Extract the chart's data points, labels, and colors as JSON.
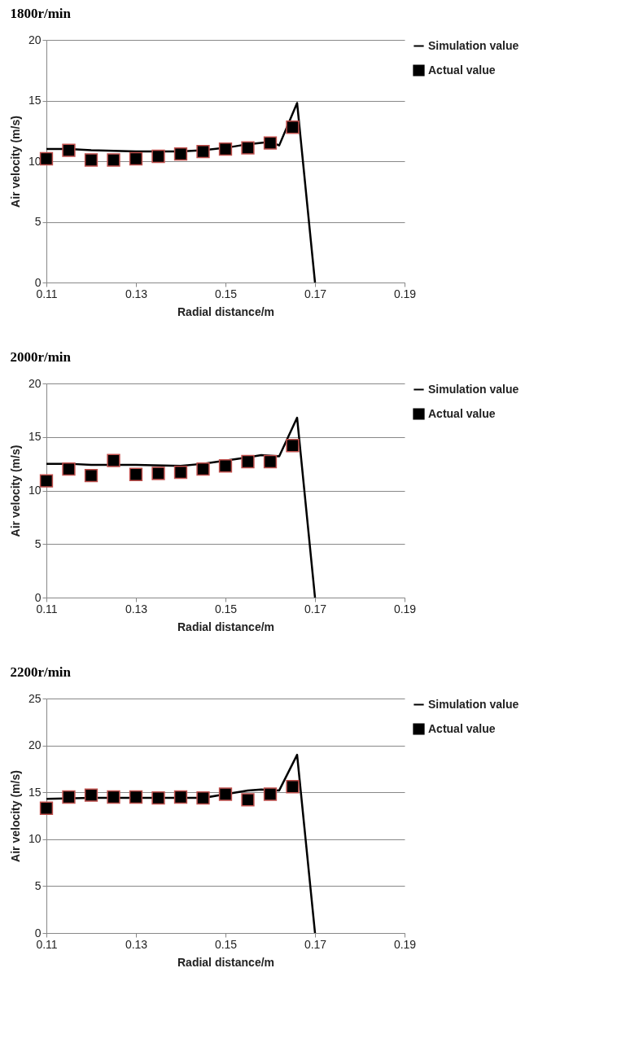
{
  "chart_data": [
    {
      "type": "line",
      "title": "1800r/min",
      "xlabel": "Radial distance/m",
      "ylabel": "Air velocity (m/s)",
      "xlim": [
        0.11,
        0.19
      ],
      "xticks": [
        0.11,
        0.13,
        0.15,
        0.17,
        0.19
      ],
      "ylim": [
        0,
        20
      ],
      "yticks": [
        0,
        5,
        10,
        15,
        20
      ],
      "grid": "y",
      "legend": "top right",
      "series": [
        {
          "name": "Simulation value",
          "color": "#000000",
          "line_style": "solid",
          "x": [
            0.11,
            0.115,
            0.12,
            0.13,
            0.14,
            0.145,
            0.15,
            0.155,
            0.16,
            0.162,
            0.166,
            0.17
          ],
          "values": [
            11.0,
            11.0,
            10.9,
            10.8,
            10.8,
            10.9,
            11.1,
            11.4,
            11.6,
            11.3,
            14.8,
            0
          ]
        },
        {
          "name": "Actual value",
          "type": "scatter",
          "marker": "square",
          "color": "#000000",
          "x": [
            0.11,
            0.115,
            0.12,
            0.125,
            0.13,
            0.135,
            0.14,
            0.145,
            0.15,
            0.155,
            0.16,
            0.165
          ],
          "values": [
            10.2,
            10.9,
            10.1,
            10.1,
            10.2,
            10.4,
            10.6,
            10.8,
            11.0,
            11.1,
            11.5,
            12.8
          ]
        }
      ]
    },
    {
      "type": "line",
      "title": "2000r/min",
      "xlabel": "Radial distance/m",
      "ylabel": "Air velocity (m/s)",
      "xlim": [
        0.11,
        0.19
      ],
      "xticks": [
        0.11,
        0.13,
        0.15,
        0.17,
        0.19
      ],
      "ylim": [
        0,
        20
      ],
      "yticks": [
        0,
        5,
        10,
        15,
        20
      ],
      "grid": "y",
      "legend": "top right",
      "series": [
        {
          "name": "Simulation value",
          "color": "#000000",
          "line_style": "solid",
          "x": [
            0.11,
            0.115,
            0.12,
            0.13,
            0.14,
            0.145,
            0.15,
            0.155,
            0.158,
            0.162,
            0.166,
            0.17
          ],
          "values": [
            12.5,
            12.5,
            12.4,
            12.4,
            12.3,
            12.5,
            12.8,
            13.1,
            13.3,
            13.2,
            16.8,
            0
          ]
        },
        {
          "name": "Actual value",
          "type": "scatter",
          "marker": "square",
          "color": "#000000",
          "x": [
            0.11,
            0.115,
            0.12,
            0.125,
            0.13,
            0.135,
            0.14,
            0.145,
            0.15,
            0.155,
            0.16,
            0.165
          ],
          "values": [
            10.9,
            12.0,
            11.4,
            12.8,
            11.5,
            11.6,
            11.7,
            12.0,
            12.3,
            12.7,
            12.7,
            14.2
          ]
        }
      ]
    },
    {
      "type": "line",
      "title": "2200r/min",
      "xlabel": "Radial distance/m",
      "ylabel": "Air velocity (m/s)",
      "xlim": [
        0.11,
        0.19
      ],
      "xticks": [
        0.11,
        0.13,
        0.15,
        0.17,
        0.19
      ],
      "ylim": [
        0,
        25
      ],
      "yticks": [
        0,
        5,
        10,
        15,
        20,
        25
      ],
      "grid": "y",
      "legend": "top right",
      "series": [
        {
          "name": "Simulation value",
          "color": "#000000",
          "line_style": "solid",
          "x": [
            0.11,
            0.12,
            0.14,
            0.145,
            0.15,
            0.155,
            0.158,
            0.162,
            0.166,
            0.17
          ],
          "values": [
            14.3,
            14.4,
            14.4,
            14.4,
            14.8,
            15.2,
            15.3,
            15.2,
            19.0,
            0
          ]
        },
        {
          "name": "Actual value",
          "type": "scatter",
          "marker": "square",
          "color": "#000000",
          "x": [
            0.11,
            0.115,
            0.12,
            0.125,
            0.13,
            0.135,
            0.14,
            0.145,
            0.15,
            0.155,
            0.16,
            0.165
          ],
          "values": [
            13.3,
            14.5,
            14.7,
            14.5,
            14.5,
            14.4,
            14.5,
            14.4,
            14.8,
            14.2,
            14.8,
            15.6
          ]
        }
      ]
    }
  ]
}
